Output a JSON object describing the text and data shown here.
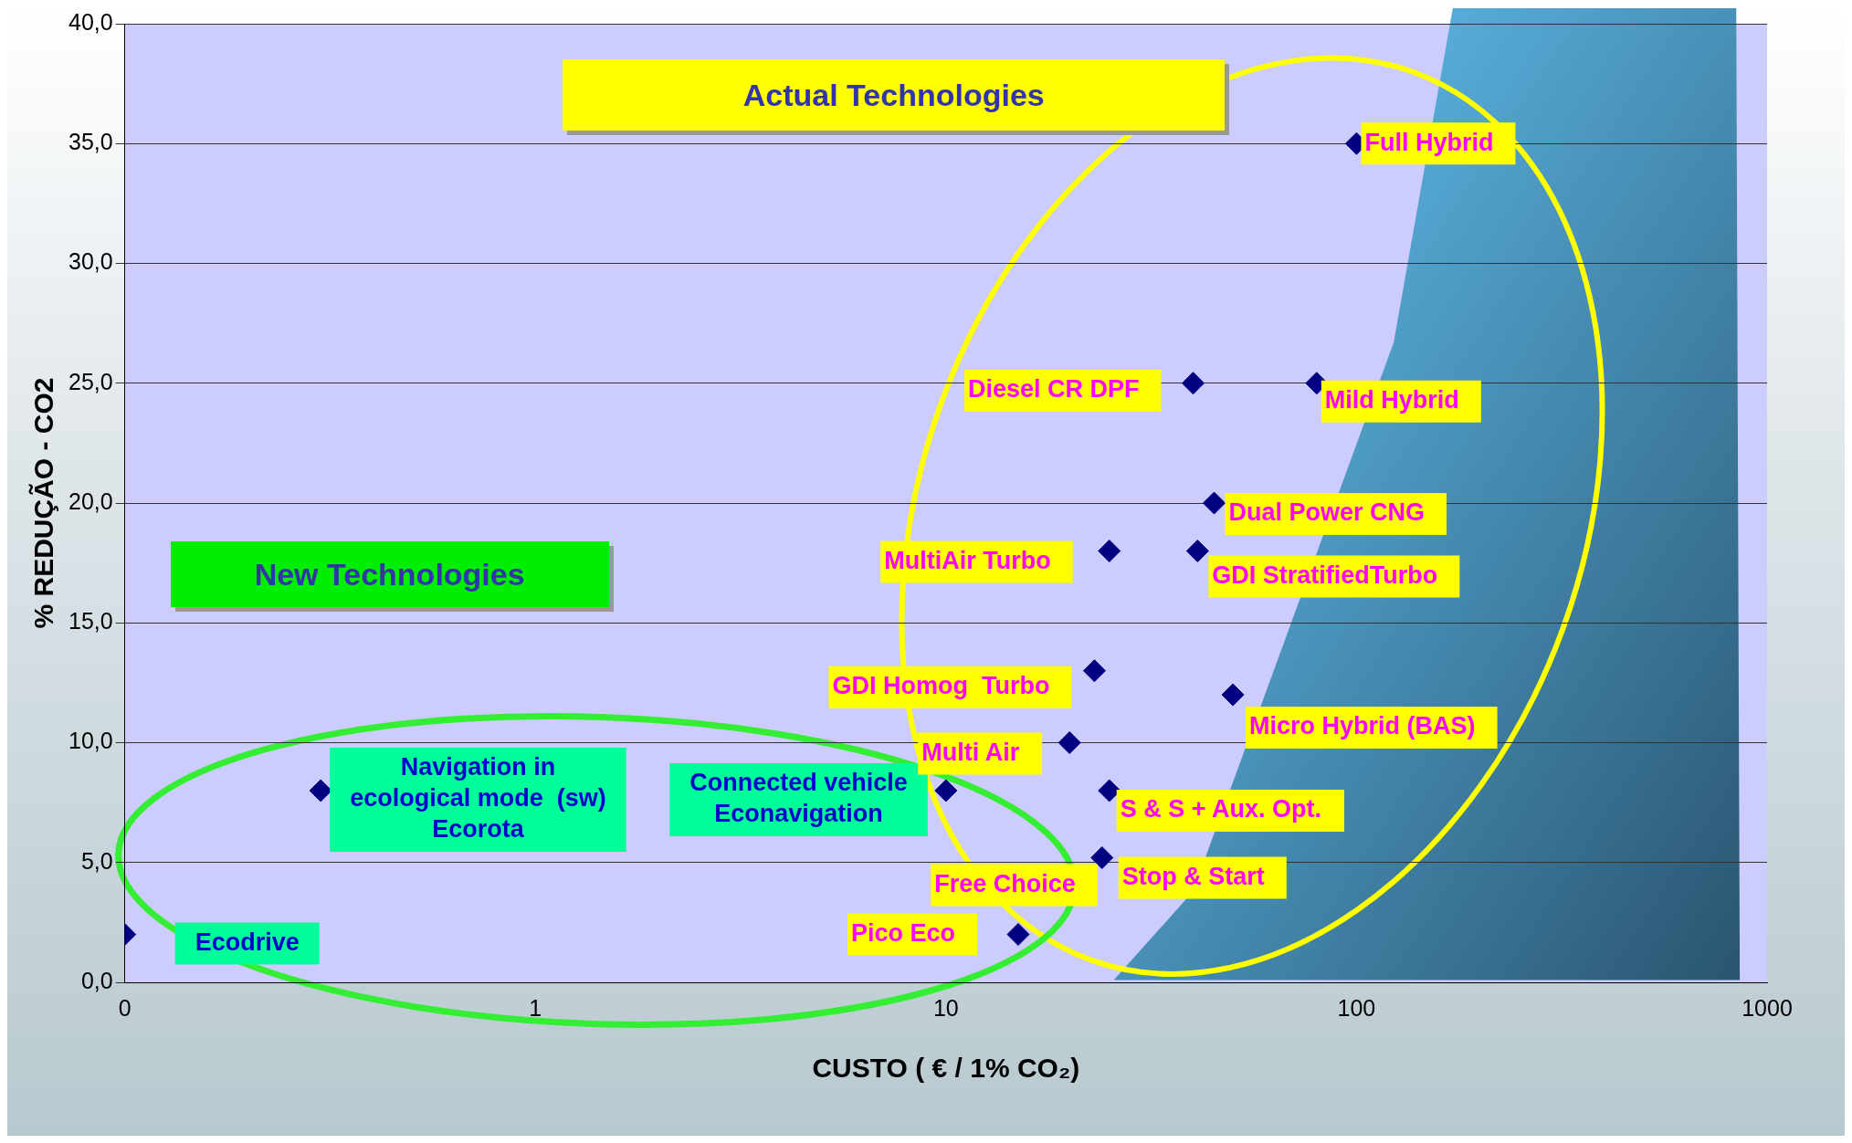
{
  "chart_data": {
    "type": "scatter",
    "xlabel": "CUSTO ( € / 1% CO₂)",
    "ylabel": "% REDUÇÃO - CO2",
    "series": [
      {
        "color": "#000080",
        "x": [
          0.1,
          0.3,
          10,
          15,
          24,
          25,
          20,
          23,
          25,
          41,
          45,
          50,
          40,
          80,
          100
        ],
        "values": [
          2,
          8,
          8,
          2,
          5.2,
          8,
          10,
          13,
          18,
          18,
          20,
          12,
          25,
          25,
          35
        ]
      }
    ],
    "log": "x",
    "xlim": [
      0.1,
      1000
    ],
    "xticks": [
      {
        "value": 0.1,
        "label": "0"
      },
      1,
      10,
      100,
      1000
    ],
    "ylim": [
      0,
      40
    ],
    "yticks": [
      {
        "value": 0,
        "label": "0,0"
      },
      {
        "value": 5,
        "label": "5,0"
      },
      {
        "value": 10,
        "label": "10,0"
      },
      {
        "value": 15,
        "label": "15,0"
      },
      {
        "value": 20,
        "label": "20,0"
      },
      {
        "value": 25,
        "label": "25,0"
      },
      {
        "value": 30,
        "label": "30,0"
      },
      {
        "value": 35,
        "label": "35,0"
      },
      {
        "value": 40,
        "label": "40,0"
      }
    ],
    "grid": "y",
    "marker": "diamond",
    "legend": false,
    "annotations": [
      "Actual Technologies",
      "New Technologies",
      {
        "text": "Ecodrive",
        "x": 0.1,
        "y": 2
      },
      {
        "text": "Navigation in\necological mode  (sw)\nEcorota",
        "x": 0.3,
        "y": 8
      },
      {
        "text": "Connected vehicle\nEconavigation",
        "x": 10,
        "y": 8
      },
      {
        "text": "Pico Eco",
        "x": 15,
        "y": 2
      },
      {
        "text": "Free Choice",
        "x": 24,
        "y": 5.2
      },
      {
        "text": "Stop & Start",
        "x": 24,
        "y": 5.2
      },
      {
        "text": "S & S + Aux. Opt.",
        "x": 25,
        "y": 8
      },
      {
        "text": "Multi Air",
        "x": 20,
        "y": 10
      },
      {
        "text": "GDI Homog  Turbo",
        "x": 23,
        "y": 13
      },
      {
        "text": "MultiAir Turbo",
        "x": 25,
        "y": 18
      },
      {
        "text": "GDI StratifiedTurbo",
        "x": 41,
        "y": 18
      },
      {
        "text": "Dual Power CNG",
        "x": 45,
        "y": 20
      },
      {
        "text": "Micro Hybrid (BAS)",
        "x": 50,
        "y": 12
      },
      {
        "text": "Diesel CR DPF",
        "x": 40,
        "y": 25
      },
      {
        "text": "Mild Hybrid",
        "x": 80,
        "y": 25
      },
      {
        "text": "Full Hybrid",
        "x": 100,
        "y": 35
      }
    ]
  }
}
